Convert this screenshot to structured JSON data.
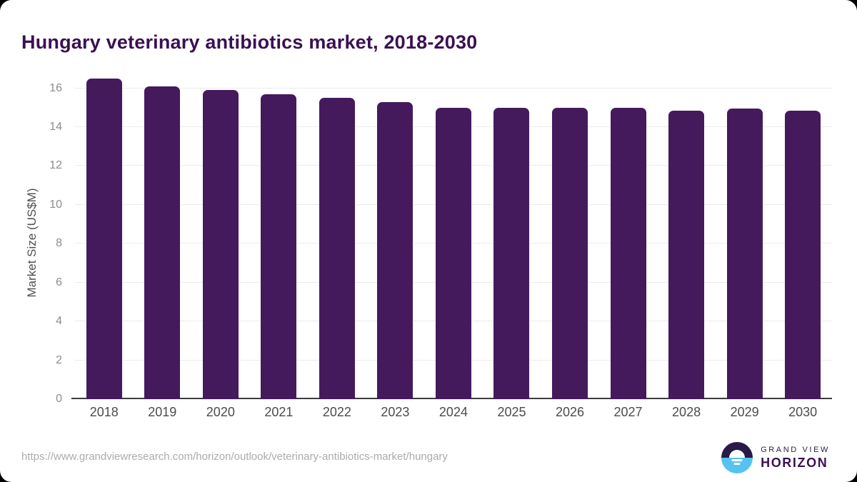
{
  "page": {
    "title": "Hungary veterinary antibiotics market, 2018-2030"
  },
  "footer": {
    "source_url": "https://www.grandviewresearch.com/horizon/outlook/veterinary-antibiotics-market/hungary",
    "logo": {
      "line1": "GRAND VIEW",
      "line2": "HORIZON"
    }
  },
  "colors": {
    "bar_color": "#451a5c",
    "title_color": "#3b1053",
    "axis_line_color": "#3d3d3d",
    "gridline_color": "#ebebeb",
    "tick_label_color": "#8c8c8c",
    "y_title_color": "#4f4f4f",
    "x_label_color": "#4b4b4b",
    "url_color": "#ababab",
    "logo_dark": "#2a1a47",
    "logo_blue": "#56c3ef"
  },
  "chart_data": {
    "type": "bar",
    "title": "Hungary veterinary antibiotics market, 2018-2030",
    "categories": [
      "2018",
      "2019",
      "2020",
      "2021",
      "2022",
      "2023",
      "2024",
      "2025",
      "2026",
      "2027",
      "2028",
      "2029",
      "2030"
    ],
    "values": [
      16.5,
      16.1,
      15.9,
      15.7,
      15.5,
      15.3,
      15.0,
      15.0,
      15.0,
      15.0,
      14.85,
      14.95,
      14.85
    ],
    "xlabel": "",
    "ylabel": "Market Size (US$M)",
    "ylim": [
      0,
      16.9
    ],
    "yticks": [
      0,
      2,
      4,
      6,
      8,
      10,
      12,
      14,
      16
    ],
    "grid": true,
    "legend": false,
    "bar_color": "#451a5c"
  }
}
